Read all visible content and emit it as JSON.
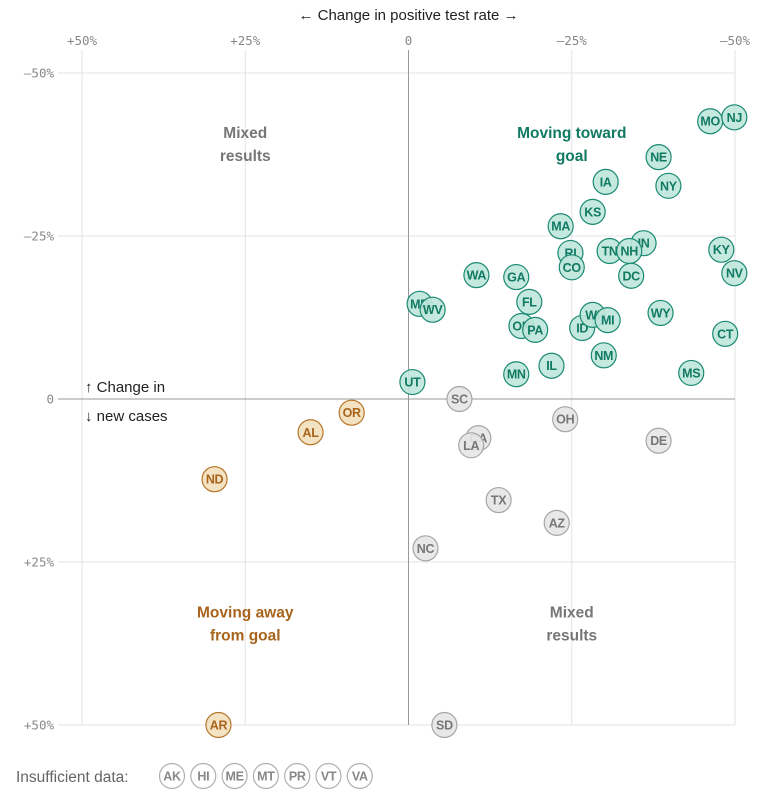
{
  "chart_data": {
    "type": "scatter",
    "title": "",
    "xlabel": "← Change in positive test rate →",
    "ylabel_lines": [
      "↑ Change in",
      "↓ new cases"
    ],
    "xlim": [
      50,
      -50
    ],
    "ylim": [
      -50,
      50
    ],
    "x_ticks": [
      {
        "value": 50,
        "label": "+50%"
      },
      {
        "value": 25,
        "label": "+25%"
      },
      {
        "value": 0,
        "label": "0"
      },
      {
        "value": -25,
        "label": "–25%"
      },
      {
        "value": -50,
        "label": "–50%"
      }
    ],
    "y_ticks": [
      {
        "value": -50,
        "label": "–50%"
      },
      {
        "value": -25,
        "label": "–25%"
      },
      {
        "value": 0,
        "label": "0"
      },
      {
        "value": 25,
        "label": "+25%"
      },
      {
        "value": 50,
        "label": "+50%"
      }
    ],
    "grid": true,
    "quadrant_labels": [
      {
        "lines": [
          "Mixed",
          "results"
        ],
        "x": 25,
        "y": -40,
        "category": "mixed"
      },
      {
        "lines": [
          "Moving toward",
          "goal"
        ],
        "x": -25,
        "y": -40,
        "category": "toward"
      },
      {
        "lines": [
          "Moving away",
          "from goal"
        ],
        "x": 25,
        "y": 33.5,
        "category": "away"
      },
      {
        "lines": [
          "Mixed",
          "results"
        ],
        "x": -25,
        "y": 33.5,
        "category": "mixed"
      }
    ],
    "categories": {
      "toward": {
        "fill": "#bfe6dc",
        "stroke": "#1b8a72",
        "text": "#117a63"
      },
      "away": {
        "fill": "#f3e0bd",
        "stroke": "#b6762a",
        "text": "#a8641c"
      },
      "mixed": {
        "fill": "#e6e6e6",
        "stroke": "#a6a6a6",
        "text": "#777777"
      },
      "insufficient": {
        "fill": "#ffffff",
        "stroke": "#b0b0b0",
        "text": "#888888"
      }
    },
    "points": [
      {
        "state": "MO",
        "x": -46.2,
        "y": -42.6,
        "category": "toward"
      },
      {
        "state": "NJ",
        "x": -49.9,
        "y": -43.2,
        "category": "toward"
      },
      {
        "state": "NE",
        "x": -38.3,
        "y": -37.1,
        "category": "toward"
      },
      {
        "state": "NY",
        "x": -39.8,
        "y": -32.7,
        "category": "toward"
      },
      {
        "state": "IA",
        "x": -30.2,
        "y": -33.3,
        "category": "toward"
      },
      {
        "state": "KS",
        "x": -28.2,
        "y": -28.7,
        "category": "toward"
      },
      {
        "state": "MA",
        "x": -23.3,
        "y": -26.5,
        "category": "toward"
      },
      {
        "state": "IN",
        "x": -36.0,
        "y": -23.9,
        "category": "toward"
      },
      {
        "state": "KY",
        "x": -47.9,
        "y": -22.9,
        "category": "toward"
      },
      {
        "state": "RI",
        "x": -24.8,
        "y": -22.4,
        "category": "toward"
      },
      {
        "state": "CO",
        "x": -25.0,
        "y": -20.2,
        "category": "toward"
      },
      {
        "state": "TN",
        "x": -30.8,
        "y": -22.7,
        "category": "toward"
      },
      {
        "state": "NH",
        "x": -33.8,
        "y": -22.7,
        "category": "toward"
      },
      {
        "state": "DC",
        "x": -34.1,
        "y": -18.9,
        "category": "toward"
      },
      {
        "state": "NV",
        "x": -49.9,
        "y": -19.3,
        "category": "toward"
      },
      {
        "state": "WA",
        "x": -10.4,
        "y": -19.0,
        "category": "toward"
      },
      {
        "state": "GA",
        "x": -16.5,
        "y": -18.7,
        "category": "toward"
      },
      {
        "state": "FL",
        "x": -18.5,
        "y": -14.9,
        "category": "toward"
      },
      {
        "state": "MD",
        "x": -1.7,
        "y": -14.6,
        "category": "toward"
      },
      {
        "state": "WV",
        "x": -3.7,
        "y": -13.7,
        "category": "toward"
      },
      {
        "state": "WY",
        "x": -38.6,
        "y": -13.2,
        "category": "toward"
      },
      {
        "state": "OK",
        "x": -17.3,
        "y": -11.2,
        "category": "toward"
      },
      {
        "state": "PA",
        "x": -19.4,
        "y": -10.6,
        "category": "toward"
      },
      {
        "state": "ID",
        "x": -26.6,
        "y": -10.9,
        "category": "toward"
      },
      {
        "state": "WI",
        "x": -28.2,
        "y": -12.9,
        "category": "toward"
      },
      {
        "state": "MI",
        "x": -30.5,
        "y": -12.1,
        "category": "toward"
      },
      {
        "state": "CT",
        "x": -48.5,
        "y": -10.0,
        "category": "toward"
      },
      {
        "state": "NM",
        "x": -29.9,
        "y": -6.7,
        "category": "toward"
      },
      {
        "state": "IL",
        "x": -21.9,
        "y": -5.1,
        "category": "toward"
      },
      {
        "state": "MN",
        "x": -16.5,
        "y": -3.8,
        "category": "toward"
      },
      {
        "state": "MS",
        "x": -43.3,
        "y": -4.0,
        "category": "toward"
      },
      {
        "state": "UT",
        "x": -0.6,
        "y": -2.6,
        "category": "toward"
      },
      {
        "state": "SC",
        "x": -7.8,
        "y": 0.0,
        "category": "mixed"
      },
      {
        "state": "OH",
        "x": -24.0,
        "y": 3.1,
        "category": "mixed"
      },
      {
        "state": "CA",
        "x": -10.7,
        "y": 6.0,
        "category": "mixed"
      },
      {
        "state": "LA",
        "x": -9.6,
        "y": 7.1,
        "category": "mixed"
      },
      {
        "state": "DE",
        "x": -38.3,
        "y": 6.4,
        "category": "mixed"
      },
      {
        "state": "TX",
        "x": -13.8,
        "y": 15.5,
        "category": "mixed"
      },
      {
        "state": "AZ",
        "x": -22.7,
        "y": 19.0,
        "category": "mixed"
      },
      {
        "state": "NC",
        "x": -2.6,
        "y": 22.9,
        "category": "mixed"
      },
      {
        "state": "SD",
        "x": -5.5,
        "y": 50.0,
        "category": "mixed"
      },
      {
        "state": "OR",
        "x": 8.7,
        "y": 2.1,
        "category": "away"
      },
      {
        "state": "AL",
        "x": 15.0,
        "y": 5.1,
        "category": "away"
      },
      {
        "state": "ND",
        "x": 29.7,
        "y": 12.3,
        "category": "away"
      },
      {
        "state": "AR",
        "x": 29.1,
        "y": 50.0,
        "category": "away"
      }
    ],
    "insufficient_data": {
      "label": "Insufficient data:",
      "states": [
        "AK",
        "HI",
        "ME",
        "MT",
        "PR",
        "VT",
        "VA"
      ]
    }
  }
}
